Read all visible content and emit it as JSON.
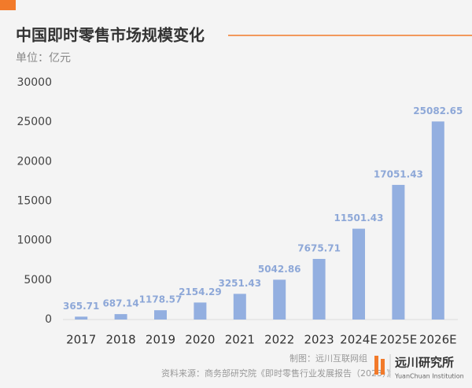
{
  "chart_data": {
    "type": "bar",
    "title": "中国即时零售市场规模变化",
    "subtitle": "单位：亿元",
    "categories": [
      "2017",
      "2018",
      "2019",
      "2020",
      "2021",
      "2022",
      "2023",
      "2024E",
      "2025E",
      "2026E"
    ],
    "values": [
      365.71,
      687.14,
      1178.57,
      2154.29,
      3251.43,
      5042.86,
      7675.71,
      11501.43,
      17051.43,
      25082.65
    ],
    "color": "#93afe0",
    "ylim": [
      0,
      30000
    ],
    "yticks": [
      0,
      5000,
      10000,
      15000,
      20000,
      25000,
      30000
    ],
    "grid": false,
    "credit": "制图：远川互联网组",
    "source": "资料来源：商务部研究院《即时零售行业发展报告（2023）》",
    "logo_name": "远川研究所",
    "logo_subtitle": "YuanChuan Institution"
  }
}
